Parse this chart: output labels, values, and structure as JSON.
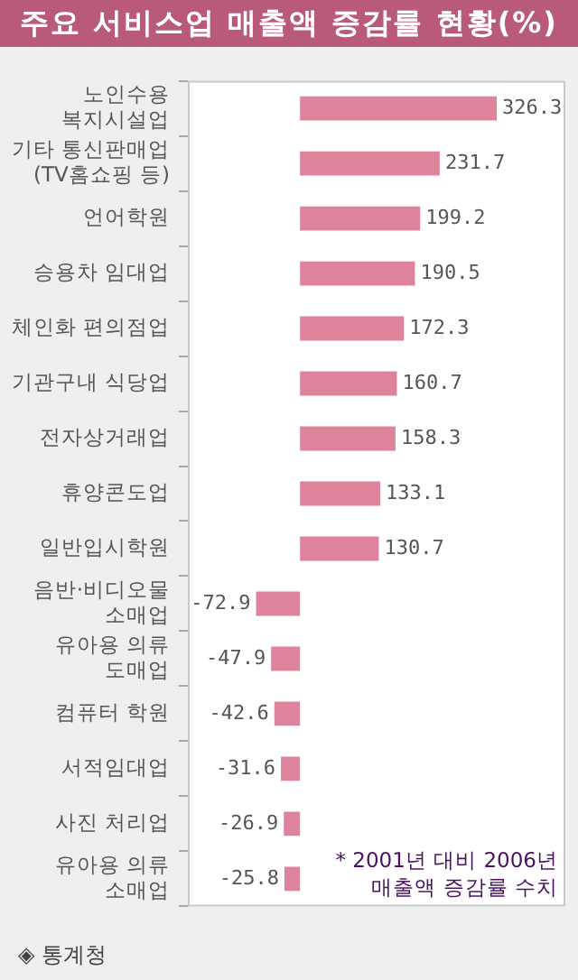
{
  "chart_data": {
    "type": "bar",
    "orientation": "horizontal",
    "title": "주요 서비스업 매출액 증감률 현황(%)",
    "categories": [
      "노인수용\n복지시설업",
      "기타 통신판매업\n(TV홈쇼핑 등)",
      "언어학원",
      "승용차 임대업",
      "체인화 편의점업",
      "기관구내 식당업",
      "전자상거래업",
      "휴양콘도업",
      "일반입시학원",
      "음반·비디오물\n소매업",
      "유아용 의류\n도매업",
      "컴퓨터 학원",
      "서적임대업",
      "사진 처리업",
      "유아용 의류\n소매업"
    ],
    "values": [
      326.3,
      231.7,
      199.2,
      190.5,
      172.3,
      160.7,
      158.3,
      133.1,
      130.7,
      -72.9,
      -47.9,
      -42.6,
      -31.6,
      -26.9,
      -25.8
    ],
    "color": "#dd849c",
    "xlim": [
      -186,
      440
    ],
    "data_labels": true,
    "grid": false,
    "legend": false,
    "tick_labels": "y",
    "annotations": [
      "* 2001년 대비 2006년\n매출액 증감률 수치",
      "◈ 통계청"
    ]
  }
}
